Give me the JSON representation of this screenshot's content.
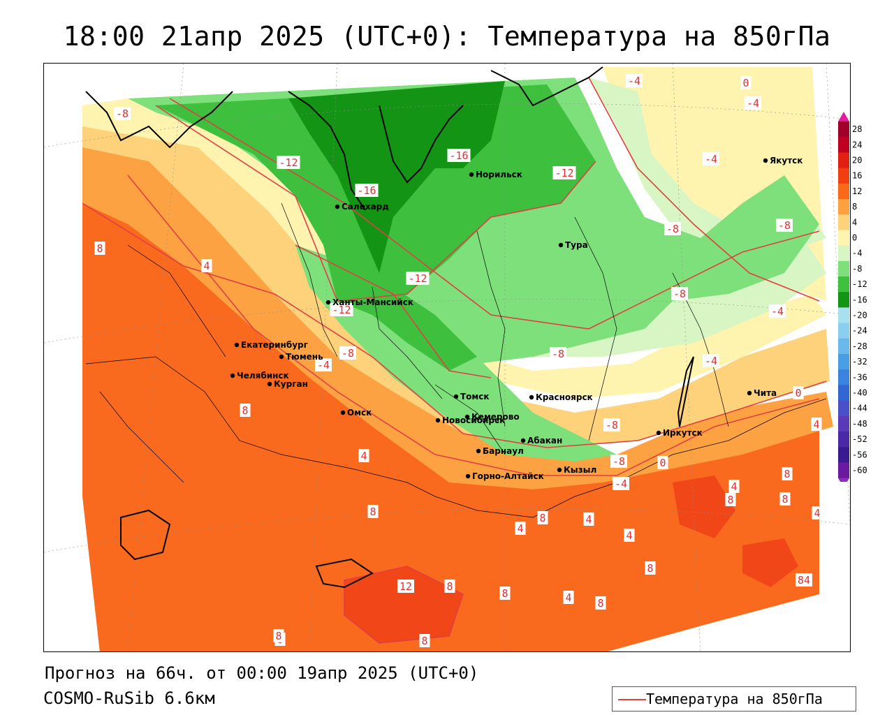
{
  "title": "18:00 21апр 2025 (UTC+0): Температура на 850гПа",
  "forecast_text": "Прогноз на 66ч. от 00:00 19апр 2025 (UTC+0)",
  "model_text": "COSMO-RuSib 6.6км",
  "legend": {
    "label": "Температура на 850гПа",
    "line_color": "#e04040"
  },
  "colorbar": {
    "ticks": [
      "28",
      "24",
      "20",
      "16",
      "12",
      "8",
      "4",
      "0",
      "-4",
      "-8",
      "-12",
      "-16",
      "-20",
      "-24",
      "-28",
      "-32",
      "-36",
      "-40",
      "-44",
      "-48",
      "-52",
      "-56",
      "-60"
    ],
    "colors": [
      "#a0002a",
      "#c00020",
      "#e02010",
      "#f04010",
      "#f86a18",
      "#fca040",
      "#fdd27a",
      "#fff3b0",
      "#d8f5c4",
      "#7ee07a",
      "#3ebf3e",
      "#149414",
      "#a8e0f0",
      "#8acff0",
      "#6ab8ec",
      "#4a9ee6",
      "#3a84df",
      "#3266d2",
      "#4a50c8",
      "#5a3ab8",
      "#4a28a8",
      "#3a1a90",
      "#6a1aa0"
    ],
    "top_arrow_color": "#e0209a",
    "bottom_arrow_color": "#8a2cc0"
  },
  "field_colors": {
    "warm8": "#fa6a1e",
    "warm12": "#f04618",
    "warm4": "#fca242",
    "zero": "#fdd27a",
    "cool0": "#fff3b0",
    "cool4": "#d8f5c4",
    "cool8": "#7ee07a",
    "cool12": "#3ebf3e",
    "cool16": "#149414",
    "isoline": "#e04040"
  },
  "cities": [
    {
      "name": "Якутск"
    },
    {
      "name": "Норильск"
    },
    {
      "name": "Салехард"
    },
    {
      "name": "Тура"
    },
    {
      "name": "Ханты-Мансийск"
    },
    {
      "name": "Екатеринбург"
    },
    {
      "name": "Тюмень"
    },
    {
      "name": "Челябинск"
    },
    {
      "name": "Курган"
    },
    {
      "name": "Омск"
    },
    {
      "name": "Томск"
    },
    {
      "name": "Красноярск"
    },
    {
      "name": "Новосибирск"
    },
    {
      "name": "Кемерово"
    },
    {
      "name": "Абакан"
    },
    {
      "name": "Барнаул"
    },
    {
      "name": "Иркутск"
    },
    {
      "name": "Чита"
    },
    {
      "name": "Горно-Алтайск"
    },
    {
      "name": "Кызыл"
    }
  ],
  "isoline_labels": [
    {
      "text": "-8"
    },
    {
      "text": "-12"
    },
    {
      "text": "-16"
    },
    {
      "text": "-16"
    },
    {
      "text": "-12"
    },
    {
      "text": "-4"
    },
    {
      "text": "0"
    },
    {
      "text": "-4"
    },
    {
      "text": "-4"
    },
    {
      "text": "-8"
    },
    {
      "text": "-8"
    },
    {
      "text": "8"
    },
    {
      "text": "4"
    },
    {
      "text": "-12"
    },
    {
      "text": "-12"
    },
    {
      "text": "-8"
    },
    {
      "text": "-4"
    },
    {
      "text": "-8"
    },
    {
      "text": "-4"
    },
    {
      "text": "-4"
    },
    {
      "text": "-8"
    },
    {
      "text": "0"
    },
    {
      "text": "8"
    },
    {
      "text": "4"
    },
    {
      "text": "-8"
    },
    {
      "text": "-8"
    },
    {
      "text": "0"
    },
    {
      "text": "4"
    },
    {
      "text": "-4"
    },
    {
      "text": "8"
    },
    {
      "text": "4"
    },
    {
      "text": "8"
    },
    {
      "text": "8"
    },
    {
      "text": "4"
    },
    {
      "text": "4"
    },
    {
      "text": "4"
    },
    {
      "text": "8"
    },
    {
      "text": "4"
    },
    {
      "text": "8"
    },
    {
      "text": "12"
    },
    {
      "text": "8"
    },
    {
      "text": "8"
    },
    {
      "text": "4"
    },
    {
      "text": "8"
    },
    {
      "text": "8"
    },
    {
      "text": "8"
    },
    {
      "text": "84"
    },
    {
      "text": "8"
    },
    {
      "text": "8"
    }
  ]
}
